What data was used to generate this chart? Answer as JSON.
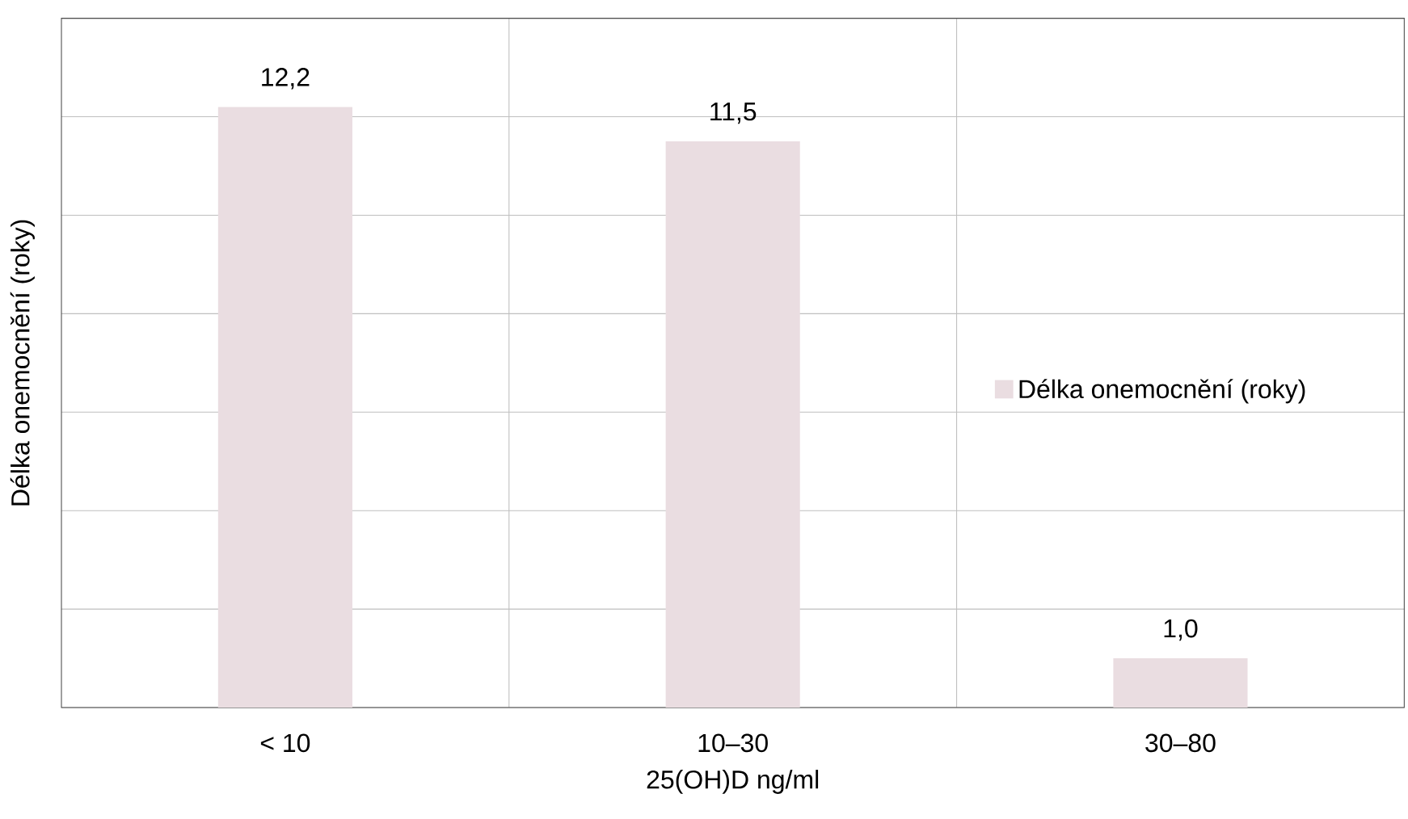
{
  "chart_data": {
    "type": "bar",
    "xlabel": "25(OH)D ng/ml",
    "ylabel": "Délka onemocnění (roky)",
    "categories": [
      "< 10",
      "10–30",
      "30–80"
    ],
    "series": [
      {
        "name": "Délka onemocnění (roky)",
        "color": "#eadde1",
        "values": [
          12.2,
          11.5,
          1.0
        ],
        "value_labels": [
          "12,2",
          "11,5",
          "1,0"
        ]
      }
    ],
    "ylim": [
      0,
      14
    ],
    "yticks": [
      0,
      2,
      4,
      6,
      8,
      10,
      12,
      14
    ],
    "tick_labels": "x",
    "grid": true,
    "legend": "right"
  }
}
